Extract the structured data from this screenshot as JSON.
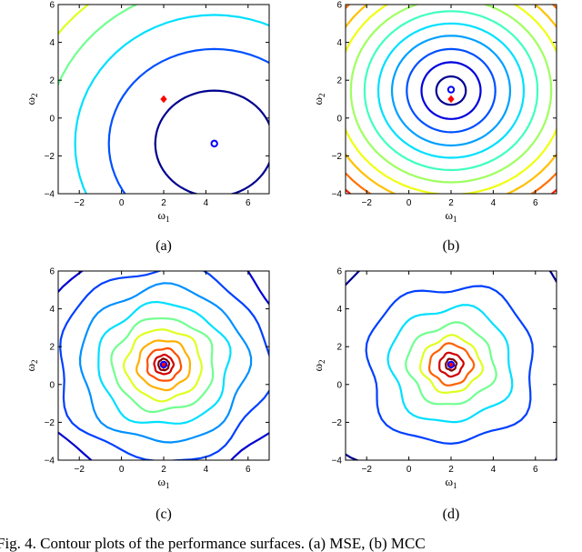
{
  "caption": "Fig. 4.   Contour plots of the performance surfaces. (a) MSE, (b) MCC",
  "chart_data": [
    {
      "type": "contour",
      "panel_label": "(a)",
      "xlabel": "ω",
      "xlabel_sub": "1",
      "ylabel": "ω",
      "ylabel_sub": "2",
      "xlim": [
        -3,
        7
      ],
      "ylim": [
        -4,
        6
      ],
      "xticks": [
        -2,
        0,
        2,
        4,
        6
      ],
      "yticks": [
        -4,
        -2,
        0,
        2,
        4,
        6
      ],
      "true_weight": [
        2,
        1
      ],
      "optimum": [
        4.4,
        -1.35
      ],
      "contours": [
        {
          "rx": 2.8,
          "ry": 2.8,
          "cx": 4.4,
          "cy": -1.35,
          "color": "#00008f"
        },
        {
          "rx": 5.0,
          "ry": 5.0,
          "cx": 4.4,
          "cy": -1.35,
          "color": "#0050ff"
        },
        {
          "rx": 6.6,
          "ry": 6.8,
          "cx": 4.4,
          "cy": -1.35,
          "color": "#00dfff"
        },
        {
          "rx": 8.0,
          "ry": 8.3,
          "cx": 4.4,
          "cy": -1.35,
          "color": "#70ff8f"
        },
        {
          "rx": 9.3,
          "ry": 9.6,
          "cx": 4.4,
          "cy": -1.35,
          "color": "#dfff20"
        },
        {
          "rx": 10.4,
          "ry": 10.8,
          "cx": 4.4,
          "cy": -1.35,
          "color": "#ffb000"
        },
        {
          "rx": 11.6,
          "ry": 11.8,
          "cx": 4.4,
          "cy": -1.35,
          "color": "#ff3000"
        },
        {
          "rx": 12.8,
          "ry": 13.0,
          "cx": 4.4,
          "cy": -1.35,
          "color": "#9f0000"
        }
      ]
    },
    {
      "type": "contour",
      "panel_label": "(b)",
      "xlabel": "ω",
      "xlabel_sub": "1",
      "ylabel": "ω",
      "ylabel_sub": "2",
      "xlim": [
        -3,
        7
      ],
      "ylim": [
        -4,
        6
      ],
      "xticks": [
        -2,
        0,
        2,
        4,
        6
      ],
      "yticks": [
        -4,
        -2,
        0,
        2,
        4,
        6
      ],
      "true_weight": [
        2,
        1
      ],
      "optimum": [
        2,
        1.5
      ],
      "contours": [
        {
          "rx": 0.7,
          "ry": 0.75,
          "cx": 2,
          "cy": 1.45,
          "color": "#00008f"
        },
        {
          "rx": 1.4,
          "ry": 1.5,
          "cx": 2,
          "cy": 1.45,
          "color": "#0000e0"
        },
        {
          "rx": 2.1,
          "ry": 2.2,
          "cx": 2,
          "cy": 1.45,
          "color": "#0050ff"
        },
        {
          "rx": 2.8,
          "ry": 2.9,
          "cx": 2,
          "cy": 1.45,
          "color": "#00a0ff"
        },
        {
          "rx": 3.45,
          "ry": 3.55,
          "cx": 2,
          "cy": 1.45,
          "color": "#00e0ff"
        },
        {
          "rx": 4.1,
          "ry": 4.2,
          "cx": 2,
          "cy": 1.45,
          "color": "#40ffbf"
        },
        {
          "rx": 4.75,
          "ry": 4.85,
          "cx": 2,
          "cy": 1.45,
          "color": "#9fff60"
        },
        {
          "rx": 5.4,
          "ry": 5.5,
          "cx": 2,
          "cy": 1.45,
          "color": "#efff10"
        },
        {
          "rx": 6.0,
          "ry": 6.1,
          "cx": 2,
          "cy": 1.45,
          "color": "#ffc000"
        },
        {
          "rx": 6.6,
          "ry": 6.7,
          "cx": 2,
          "cy": 1.45,
          "color": "#ff7000"
        },
        {
          "rx": 7.2,
          "ry": 7.3,
          "cx": 2,
          "cy": 1.45,
          "color": "#ff2000"
        },
        {
          "rx": 7.8,
          "ry": 7.9,
          "cx": 2,
          "cy": 1.45,
          "color": "#9f0000"
        }
      ]
    },
    {
      "type": "contour",
      "panel_label": "(c)",
      "xlabel": "ω",
      "xlabel_sub": "1",
      "ylabel": "ω",
      "ylabel_sub": "2",
      "xlim": [
        -3,
        7
      ],
      "ylim": [
        -4,
        6
      ],
      "xticks": [
        -2,
        0,
        2,
        4,
        6
      ],
      "yticks": [
        -4,
        -2,
        0,
        2,
        4,
        6
      ],
      "true_weight": [
        2,
        1
      ],
      "optimum": [
        2,
        1.05
      ],
      "contours": [
        {
          "rx": 0.25,
          "ry": 0.3,
          "cx": 2,
          "cy": 1.05,
          "color": "#7f0000"
        },
        {
          "rx": 0.45,
          "ry": 0.5,
          "cx": 2,
          "cy": 1.05,
          "color": "#d00000"
        },
        {
          "rx": 0.8,
          "ry": 0.85,
          "cx": 2,
          "cy": 1.05,
          "color": "#ff5000"
        },
        {
          "rx": 1.25,
          "ry": 1.3,
          "cx": 2,
          "cy": 1.05,
          "color": "#ffb000"
        },
        {
          "rx": 1.8,
          "ry": 1.85,
          "cx": 2,
          "cy": 1.05,
          "color": "#dfff20"
        },
        {
          "rx": 2.4,
          "ry": 2.45,
          "cx": 2,
          "cy": 1.05,
          "color": "#70ff8f"
        },
        {
          "rx": 3.1,
          "ry": 3.2,
          "cx": 2,
          "cy": 1.05,
          "color": "#00dfff"
        },
        {
          "rx": 3.95,
          "ry": 4.1,
          "cx": 2,
          "cy": 1.05,
          "color": "#0090ff"
        },
        {
          "rx": 5.0,
          "ry": 5.1,
          "cx": 2,
          "cy": 1.05,
          "color": "#0040ff"
        },
        {
          "rx": 6.1,
          "ry": 6.3,
          "cx": 2,
          "cy": 1.05,
          "color": "#0000d0"
        },
        {
          "rx": 7.4,
          "ry": 7.6,
          "cx": 2,
          "cy": 1.05,
          "color": "#00008f"
        }
      ]
    },
    {
      "type": "contour",
      "panel_label": "(d)",
      "xlabel": "ω",
      "xlabel_sub": "1",
      "ylabel": "ω",
      "ylabel_sub": "2",
      "xlim": [
        -3,
        7
      ],
      "ylim": [
        -4,
        6
      ],
      "xticks": [
        -2,
        0,
        2,
        4,
        6
      ],
      "yticks": [
        -4,
        -2,
        0,
        2,
        4,
        6
      ],
      "true_weight": [
        2,
        1
      ],
      "optimum": [
        2,
        1.05
      ],
      "contours": [
        {
          "rx": 0.25,
          "ry": 0.3,
          "cx": 2,
          "cy": 1.05,
          "color": "#7f0000"
        },
        {
          "rx": 0.55,
          "ry": 0.6,
          "cx": 2,
          "cy": 1.05,
          "color": "#d00000"
        },
        {
          "rx": 1.0,
          "ry": 1.05,
          "cx": 2,
          "cy": 1.05,
          "color": "#ff6000"
        },
        {
          "rx": 1.4,
          "ry": 1.45,
          "cx": 2,
          "cy": 1.05,
          "color": "#dfff20"
        },
        {
          "rx": 2.05,
          "ry": 2.1,
          "cx": 2,
          "cy": 1.05,
          "color": "#70ff8f"
        },
        {
          "rx": 2.9,
          "ry": 3.05,
          "cx": 2,
          "cy": 1.05,
          "color": "#00dfff"
        },
        {
          "rx": 4.0,
          "ry": 4.2,
          "cx": 2,
          "cy": 1.05,
          "color": "#0040ff"
        },
        {
          "rx": 6.4,
          "ry": 6.6,
          "cx": 2,
          "cy": 1.05,
          "color": "#00008f"
        }
      ]
    }
  ]
}
